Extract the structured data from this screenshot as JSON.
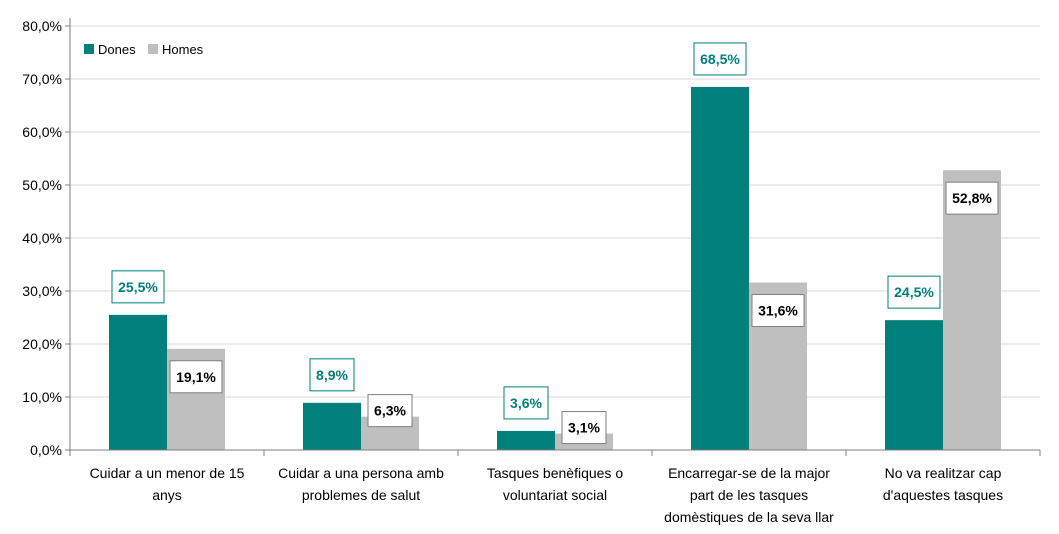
{
  "colors": {
    "dones": "#007F7B",
    "homes": "#BFBFBF",
    "grid": "#D9D9D9",
    "axis": "#7F7F7F"
  },
  "chart_data": {
    "type": "bar",
    "title": "",
    "xlabel": "",
    "ylabel": "",
    "ylim": [
      0,
      80
    ],
    "yticks": [
      "0,0%",
      "10,0%",
      "20,0%",
      "30,0%",
      "40,0%",
      "50,0%",
      "60,0%",
      "70,0%",
      "80,0%"
    ],
    "grid": true,
    "legend": "top-left",
    "categories": [
      [
        "Cuidar a un menor de 15",
        "anys"
      ],
      [
        "Cuidar a una persona amb",
        "problemes de salut"
      ],
      [
        "Tasques benèfiques o",
        "voluntariat social"
      ],
      [
        "Encarregar-se de la major",
        "part de les tasques",
        "domèstiques de la seva llar"
      ],
      [
        "No va realitzar cap",
        "d'aquestes tasques"
      ]
    ],
    "series": [
      {
        "name": "Dones",
        "values": [
          25.5,
          8.9,
          3.6,
          68.5,
          24.5
        ],
        "labels": [
          "25,5%",
          "8,9%",
          "3,6%",
          "68,5%",
          "24,5%"
        ]
      },
      {
        "name": "Homes",
        "values": [
          19.1,
          6.3,
          3.1,
          31.6,
          52.8
        ],
        "labels": [
          "19,1%",
          "6,3%",
          "3,1%",
          "31,6%",
          "52,8%"
        ]
      }
    ]
  }
}
